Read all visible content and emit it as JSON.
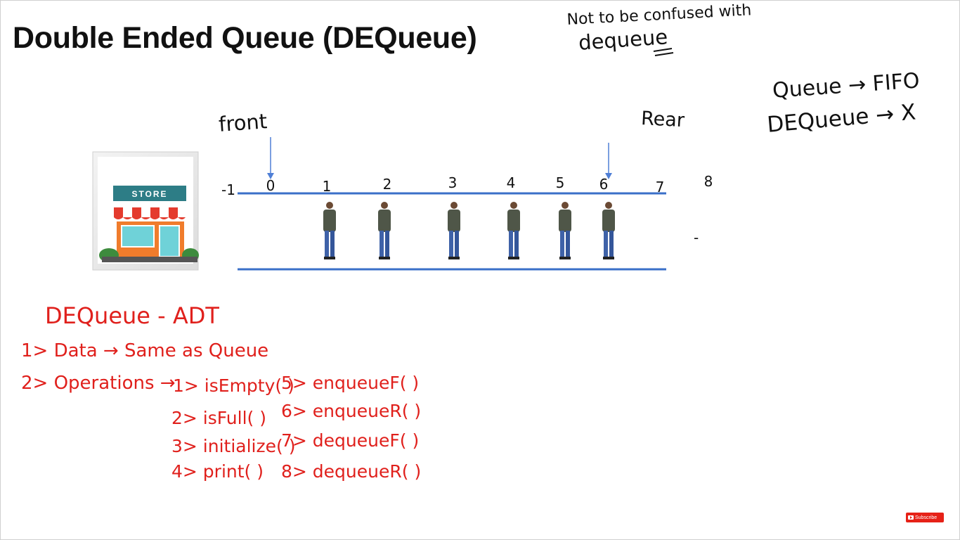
{
  "slide": {
    "title": "Double Ended Queue (DEQueue)",
    "note_line1": "Not to be confused with",
    "note_line2": "dequeue",
    "fifo_line1": "Queue → FIFO",
    "fifo_line2": "DEQueue → X",
    "front_label": "front",
    "rear_label": "Rear",
    "dash_mark": "-"
  },
  "queue": {
    "indices": [
      "-1",
      "0",
      "1",
      "2",
      "3",
      "4",
      "5",
      "6",
      "7",
      "8"
    ],
    "people_count": 6,
    "front_index": "0",
    "rear_index": "6"
  },
  "store": {
    "sign_text": "STORE"
  },
  "adt": {
    "title": "DEQueue - ADT",
    "line1": "1> Data → Same as Queue",
    "line2_prefix": "2> Operations →",
    "operations": [
      "1> isEmpty( )",
      "2> isFull( )",
      "3> initialize( )",
      "4> print( )",
      "5> enqueueF( )",
      "6> enqueueR( )",
      "7> dequeueF( )",
      "8> dequeueR( )"
    ]
  },
  "colors": {
    "queue_line": "#3a6fc8",
    "arrow": "#4f7fd6",
    "ink": "#111111",
    "red_ink": "#e0201c"
  },
  "subscribe": {
    "label": "Subscribe",
    "icon": "youtube-play-icon"
  }
}
